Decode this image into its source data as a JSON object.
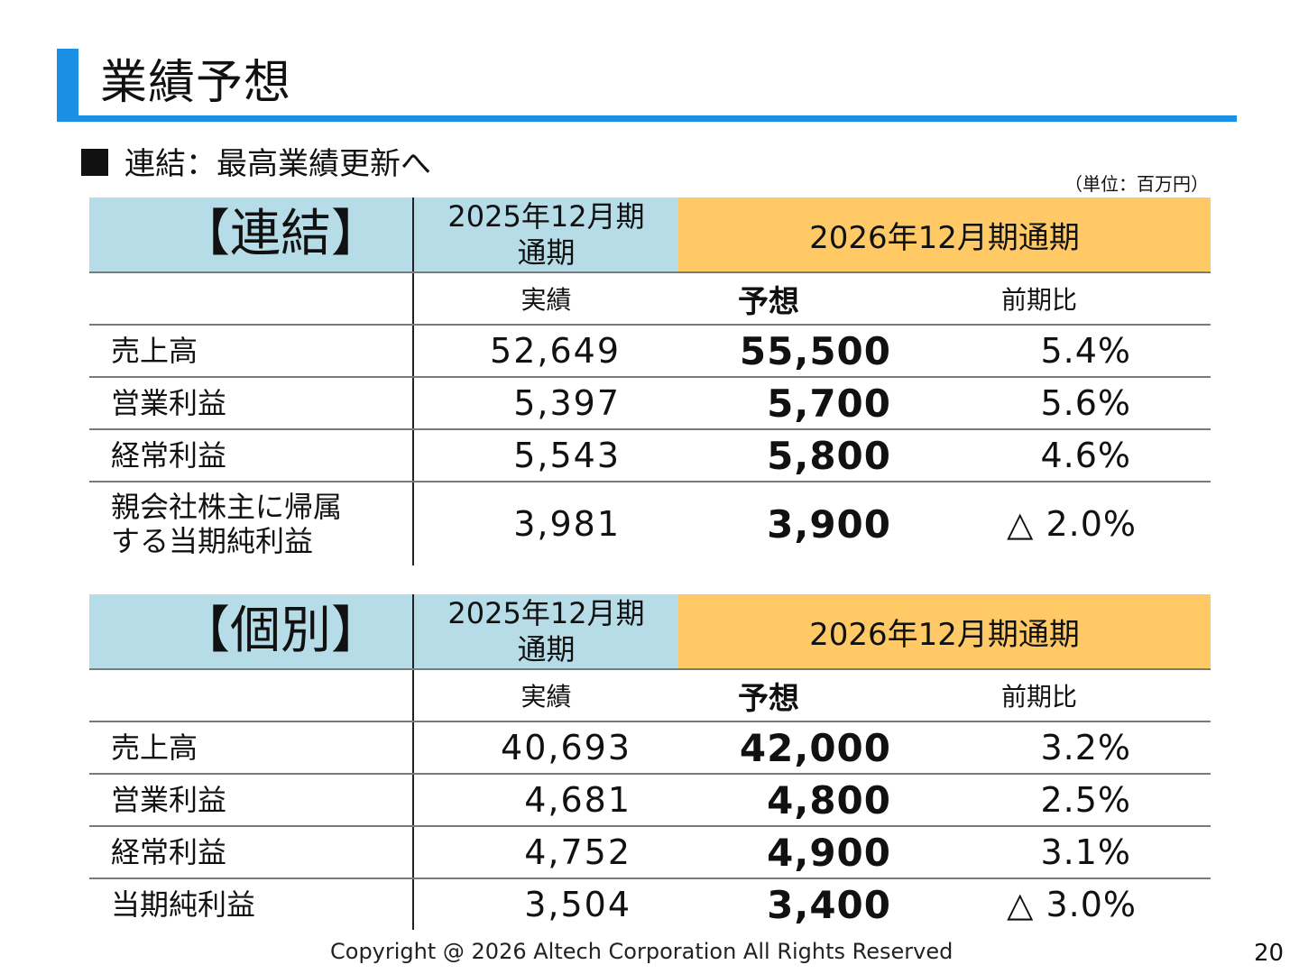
{
  "title": "業績予想",
  "section_heading": "連結：最高業績更新へ",
  "unit_note": "（単位：百万円）",
  "consolidated": {
    "label": "【連結】",
    "prev_period": "2025年12月期\n通期",
    "forecast_period": "2026年12月期通期",
    "sub_actual": "実績",
    "sub_forecast": "予想",
    "sub_ratio": "前期比",
    "rows": [
      {
        "label": "売上高",
        "actual": "52,649",
        "forecast": "55,500",
        "ratio": "5.4%"
      },
      {
        "label": "営業利益",
        "actual": "5,397",
        "forecast": "5,700",
        "ratio": "5.6%"
      },
      {
        "label": "経常利益",
        "actual": "5,543",
        "forecast": "5,800",
        "ratio": "4.6%"
      },
      {
        "label": "親会社株主に帰属\nする当期純利益",
        "actual": "3,981",
        "forecast": "3,900",
        "ratio": "△ 2.0%"
      }
    ]
  },
  "standalone": {
    "label": "【個別】",
    "prev_period": "2025年12月期\n通期",
    "forecast_period": "2026年12月期通期",
    "sub_actual": "実績",
    "sub_forecast": "予想",
    "sub_ratio": "前期比",
    "rows": [
      {
        "label": "売上高",
        "actual": "40,693",
        "forecast": "42,000",
        "ratio": "3.2%"
      },
      {
        "label": "営業利益",
        "actual": "4,681",
        "forecast": "4,800",
        "ratio": "2.5%"
      },
      {
        "label": "経常利益",
        "actual": "4,752",
        "forecast": "4,900",
        "ratio": "3.1%"
      },
      {
        "label": "当期純利益",
        "actual": "3,504",
        "forecast": "3,400",
        "ratio": "△ 3.0%"
      }
    ]
  },
  "colors": {
    "accent": "#1a8fe3",
    "header_blue": "#b6dce8",
    "header_orange": "#ffca66"
  },
  "footer": "Copyright @ 2026  Altech Corporation All Rights Reserved",
  "page_number": "20"
}
